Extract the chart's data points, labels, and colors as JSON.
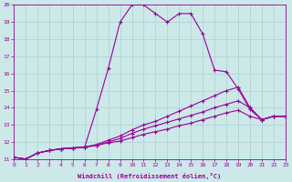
{
  "xlabel": "Windchill (Refroidissement éolien,°C)",
  "xlim": [
    0,
    23
  ],
  "ylim": [
    11,
    20
  ],
  "xticks": [
    0,
    1,
    2,
    3,
    4,
    5,
    6,
    7,
    8,
    9,
    10,
    11,
    12,
    13,
    14,
    15,
    16,
    17,
    18,
    19,
    20,
    21,
    22,
    23
  ],
  "yticks": [
    11,
    12,
    13,
    14,
    15,
    16,
    17,
    18,
    19,
    20
  ],
  "color": "#990099",
  "background": "#cce8e8",
  "curves": [
    {
      "x": [
        0,
        1,
        2,
        3,
        4,
        5,
        6,
        7,
        8,
        9,
        10,
        11,
        12,
        13,
        14,
        15,
        16,
        17,
        18,
        19,
        20,
        21,
        22,
        23
      ],
      "y": [
        11.1,
        11.0,
        11.35,
        11.5,
        11.6,
        11.65,
        11.7,
        13.9,
        16.3,
        19.0,
        20.0,
        20.0,
        19.5,
        19.0,
        19.5,
        19.5,
        18.3,
        16.2,
        16.1,
        15.1,
        13.9,
        13.3,
        13.5,
        13.5
      ]
    },
    {
      "x": [
        0,
        1,
        2,
        3,
        4,
        5,
        6,
        7,
        8,
        9,
        10,
        11,
        12,
        13,
        14,
        15,
        16,
        17,
        18,
        19,
        20,
        21,
        22,
        23
      ],
      "y": [
        11.1,
        11.0,
        11.35,
        11.5,
        11.6,
        11.65,
        11.7,
        11.85,
        12.1,
        12.35,
        12.7,
        13.0,
        13.2,
        13.5,
        13.8,
        14.1,
        14.4,
        14.7,
        15.0,
        15.2,
        14.0,
        13.3,
        13.5,
        13.5
      ]
    },
    {
      "x": [
        0,
        1,
        2,
        3,
        4,
        5,
        6,
        7,
        8,
        9,
        10,
        11,
        12,
        13,
        14,
        15,
        16,
        17,
        18,
        19,
        20,
        21,
        22,
        23
      ],
      "y": [
        11.1,
        11.0,
        11.35,
        11.5,
        11.6,
        11.65,
        11.7,
        11.8,
        12.0,
        12.2,
        12.5,
        12.75,
        12.95,
        13.15,
        13.35,
        13.55,
        13.75,
        14.0,
        14.2,
        14.4,
        14.0,
        13.3,
        13.5,
        13.5
      ]
    },
    {
      "x": [
        0,
        1,
        2,
        3,
        4,
        5,
        6,
        7,
        8,
        9,
        10,
        11,
        12,
        13,
        14,
        15,
        16,
        17,
        18,
        19,
        20,
        21,
        22,
        23
      ],
      "y": [
        11.1,
        11.0,
        11.35,
        11.5,
        11.6,
        11.65,
        11.7,
        11.8,
        11.95,
        12.05,
        12.25,
        12.45,
        12.6,
        12.75,
        12.95,
        13.1,
        13.3,
        13.5,
        13.7,
        13.85,
        13.5,
        13.3,
        13.5,
        13.5
      ]
    }
  ],
  "grid_color": "#b0d4d4",
  "marker": "+",
  "markersize": 3,
  "linewidth": 0.8,
  "tick_fontsize": 4.5,
  "xlabel_fontsize": 5.0
}
